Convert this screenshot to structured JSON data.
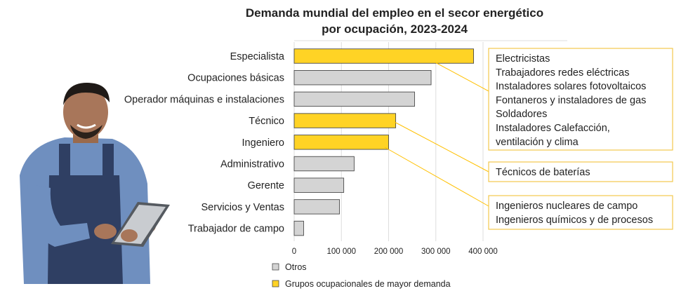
{
  "chart_data": {
    "type": "bar",
    "orientation": "horizontal",
    "title": [
      "Demanda mundial del empleo en el secor energético",
      "por ocupación, 2023-2024"
    ],
    "categories": [
      "Especialista",
      "Ocupaciones básicas",
      "Operador  máquinas e instalaciones",
      "Técnico",
      "Ingeniero",
      "Administrativo",
      "Gerente",
      "Servicios y Ventas",
      "Trabajador de campo"
    ],
    "values": [
      380000,
      290000,
      255000,
      215000,
      200000,
      127000,
      105000,
      96000,
      20000
    ],
    "groups": [
      "high",
      "other",
      "other",
      "high",
      "high",
      "other",
      "other",
      "other",
      "other"
    ],
    "xlim": [
      0,
      400000
    ],
    "xticks": [
      0,
      100000,
      200000,
      300000,
      400000
    ],
    "xtick_labels": [
      "0",
      "100 000",
      "200 000",
      "300 000",
      "400 000"
    ],
    "grid": "vertical",
    "colors": {
      "high": "#FFD325",
      "other": "#D4D4D4",
      "bar_edge": "#4a4a4a",
      "callout_border": "#F2C94C",
      "leader": "#FFC000",
      "grid": "#dddddd"
    },
    "legend": {
      "placement": "bottom",
      "items": [
        {
          "key": "other",
          "label": "Otros"
        },
        {
          "key": "high",
          "label": "Grupos ocupacionales de mayor demanda"
        }
      ]
    },
    "annotations": [
      {
        "category": "Especialista",
        "lines": [
          "Electricistas",
          "Trabajadores redes eléctricas",
          "Instaladores solares fotovoltaicos",
          "Fontaneros y instaladores de gas",
          "Soldadores",
          "Instaladores Calefacción,",
          "ventilación y clima"
        ]
      },
      {
        "category": "Técnico",
        "lines": [
          "Técnicos de baterías"
        ]
      },
      {
        "category": "Ingeniero",
        "lines": [
          "Ingenieros nucleares de campo",
          "Ingenieros químicos y de procesos"
        ]
      }
    ]
  },
  "illustration": {
    "icon": "worker-with-tablet-icon"
  }
}
